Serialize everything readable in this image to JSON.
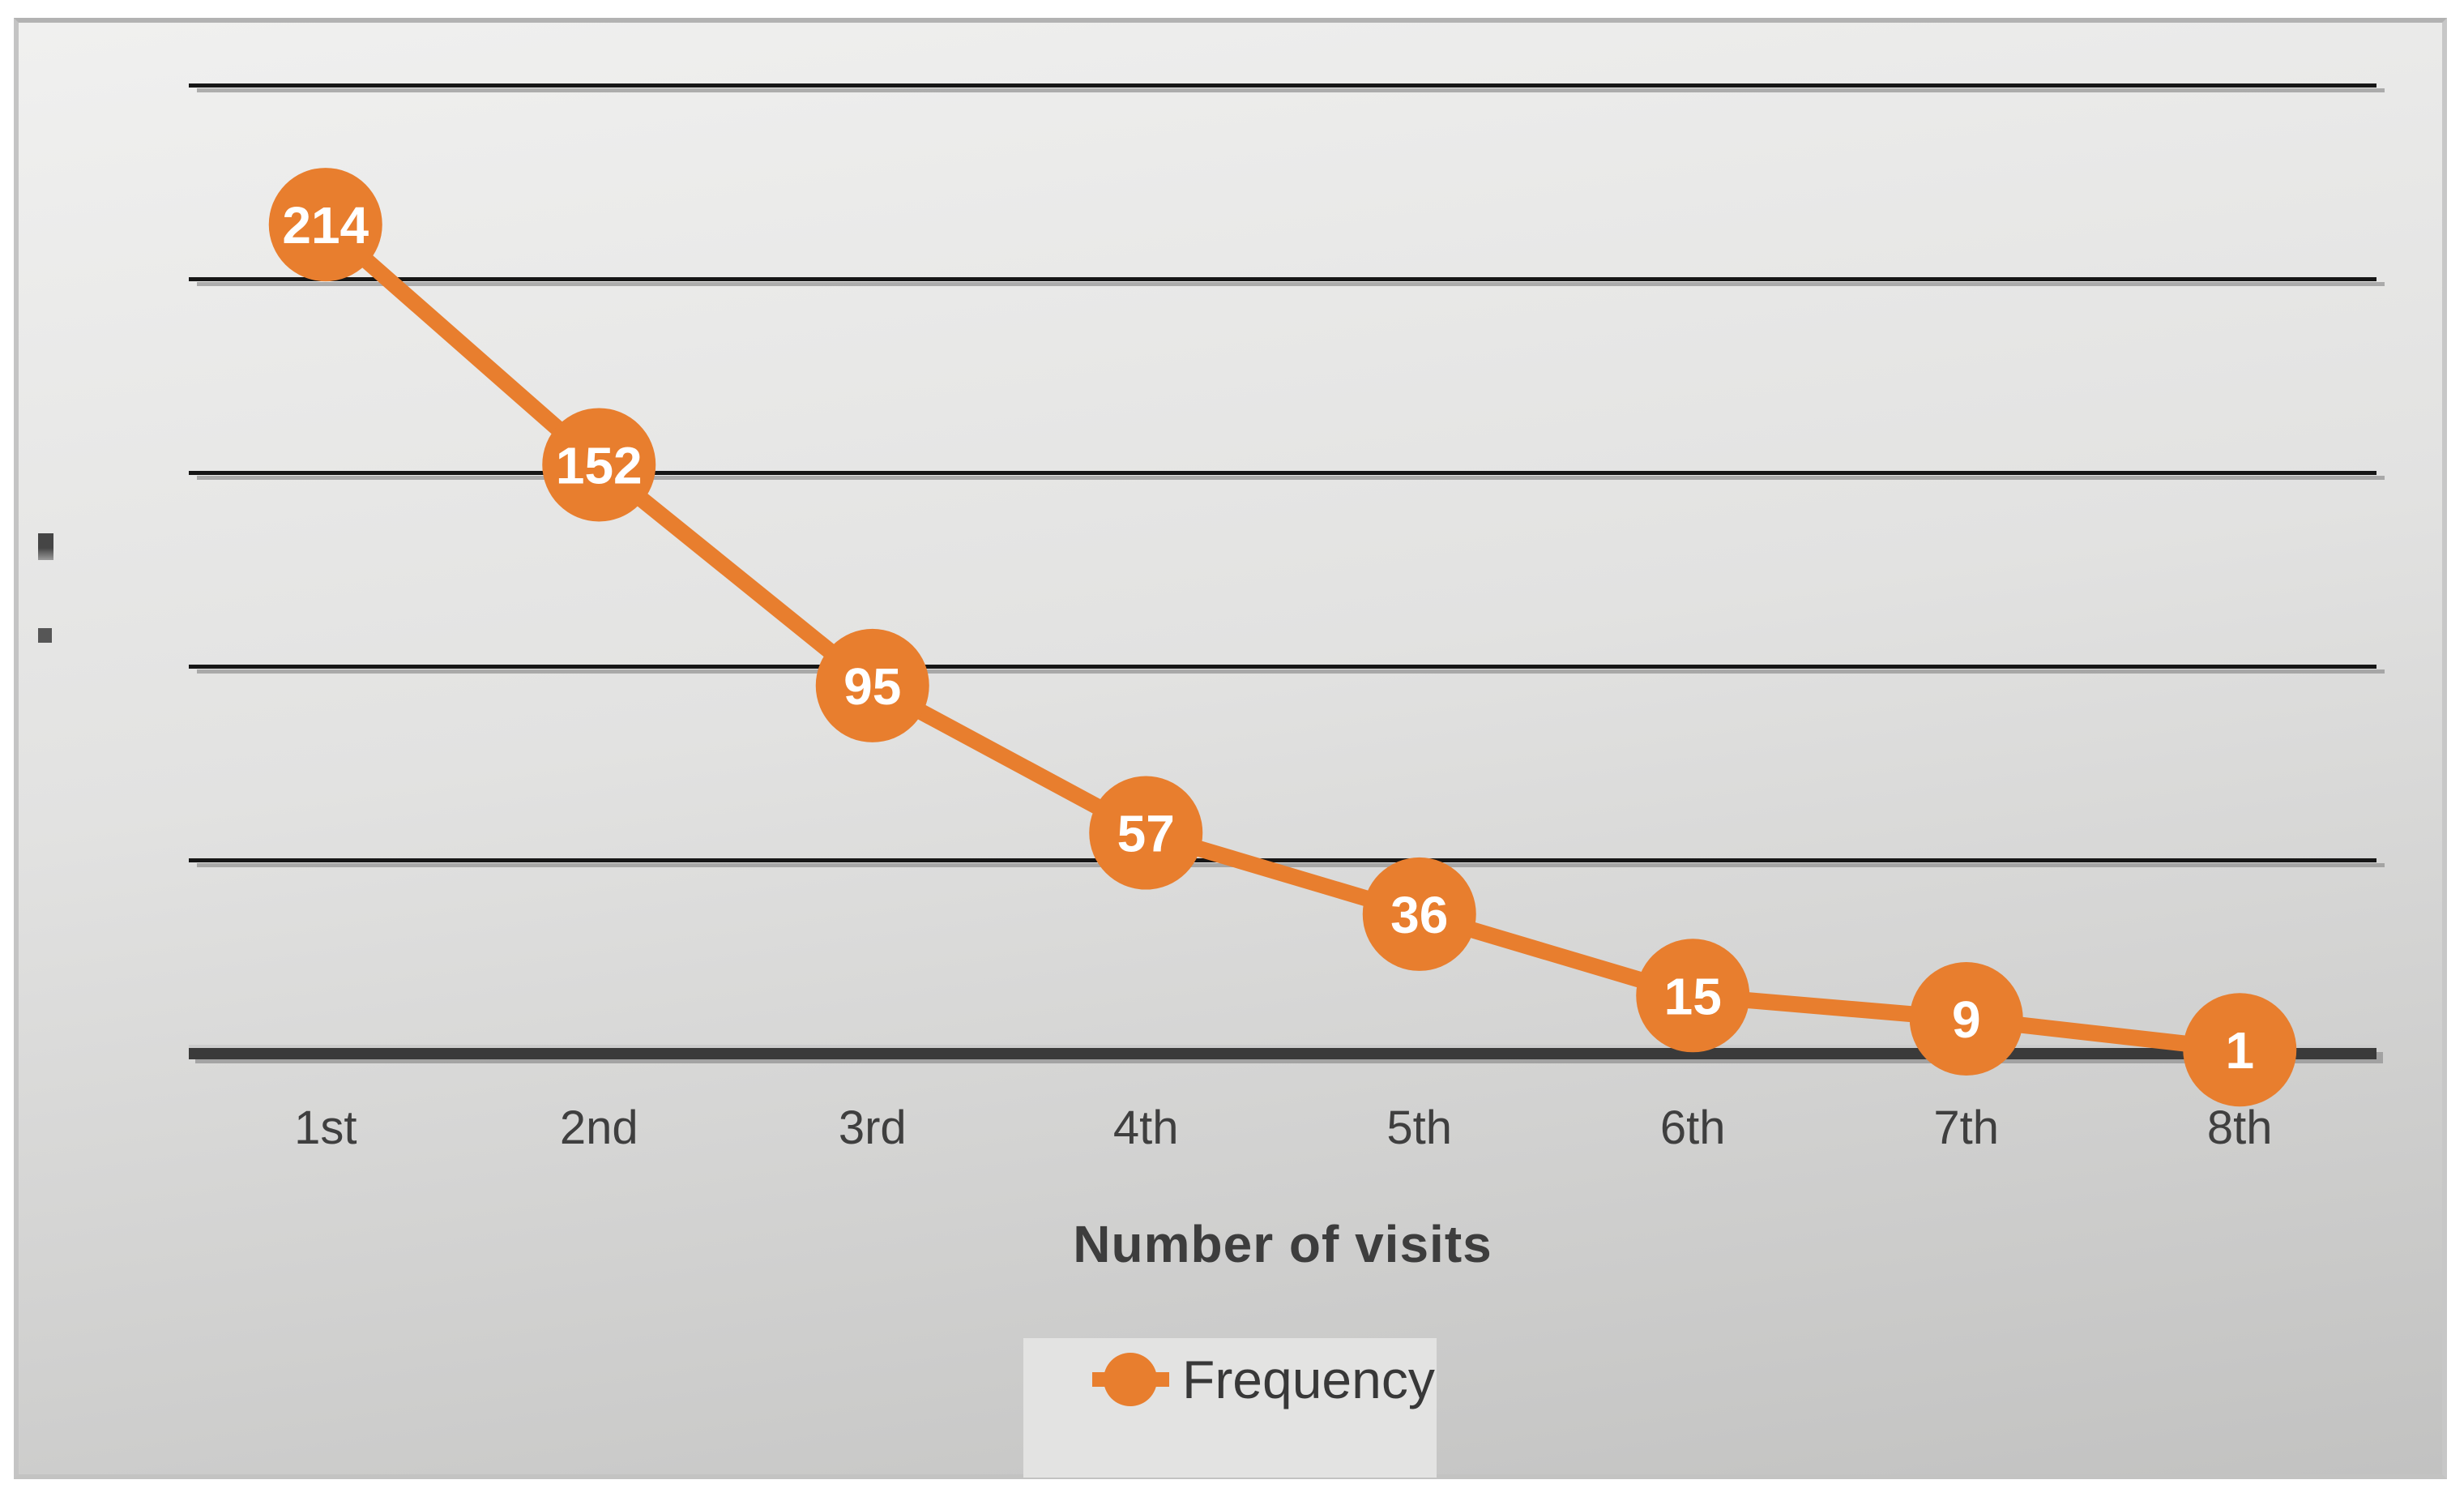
{
  "chart_data": {
    "type": "line",
    "title": "",
    "categories": [
      "1st",
      "2nd",
      "3rd",
      "4th",
      "5th",
      "6th",
      "7th",
      "8th"
    ],
    "series": [
      {
        "name": "Frequency",
        "values": [
          214,
          152,
          95,
          57,
          36,
          15,
          9,
          1
        ]
      }
    ],
    "xlabel": "Number of visits",
    "ylabel": "",
    "ylim": [
      0,
      250
    ],
    "grid_interval": 50,
    "grid": "horizontal-only",
    "legend_position": "bottom",
    "data_labels": "centered-on-markers",
    "colors": {
      "series": "#e87e2e",
      "marker_label": "#ffffff",
      "grid": "#161616",
      "axis": "#3a3a3a",
      "tick_text": "#3f3f3f",
      "legend_bg": "#e3e3e2",
      "legend_text": "#383838",
      "panel_top": "#f0f0ef",
      "panel_bottom": "#c2c2c1",
      "panel_border": "#b9b9b9"
    }
  }
}
